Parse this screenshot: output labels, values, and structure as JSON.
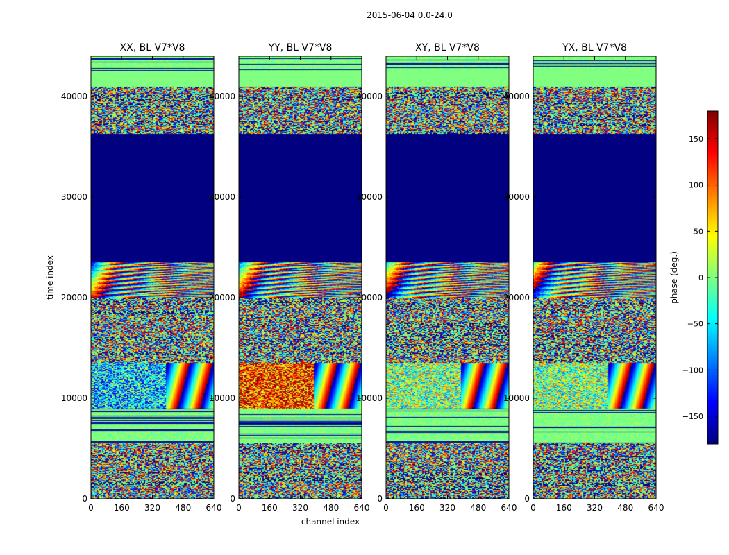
{
  "figure_title": "2015-06-04 0.0-24.0",
  "chart_data": {
    "type": "heatmap",
    "panels": [
      {
        "title": "XX, BL V7*V8",
        "polarization": "XX",
        "baseline": "V7*V8"
      },
      {
        "title": "YY, BL V7*V8",
        "polarization": "YY",
        "baseline": "V7*V8"
      },
      {
        "title": "XY, BL V7*V8",
        "polarization": "XY",
        "baseline": "V7*V8"
      },
      {
        "title": "YX, BL V7*V8",
        "polarization": "YX",
        "baseline": "V7*V8"
      }
    ],
    "xlabel": "channel index",
    "ylabel": "time index",
    "xlim": [
      0,
      640
    ],
    "ylim": [
      0,
      44000
    ],
    "xticks": [
      0,
      160,
      320,
      480,
      640
    ],
    "yticks": [
      0,
      10000,
      20000,
      30000,
      40000
    ],
    "colorbar": {
      "label": "phase (deg.)",
      "range": [
        -180,
        180
      ],
      "ticks": [
        150,
        100,
        50,
        0,
        -50,
        -100,
        -150
      ],
      "tick_labels": [
        "150",
        "100",
        "50",
        "0",
        "−50",
        "−100",
        "−150"
      ],
      "colormap": "jet"
    },
    "regions": [
      {
        "t_start": 0,
        "t_end": 5500,
        "pattern": "noisy_striped"
      },
      {
        "t_start": 5500,
        "t_end": 9000,
        "pattern": "near_zero_striped"
      },
      {
        "t_start": 9000,
        "t_end": 13500,
        "pattern": "dense_noise_with_fringes"
      },
      {
        "t_start": 13500,
        "t_end": 20000,
        "pattern": "noisy_striped"
      },
      {
        "t_start": 20000,
        "t_end": 23500,
        "pattern": "phase_fringes"
      },
      {
        "t_start": 23500,
        "t_end": 36300,
        "value_deg": -180,
        "pattern": "constant"
      },
      {
        "t_start": 36300,
        "t_end": 41000,
        "pattern": "noisy_striped"
      },
      {
        "t_start": 41000,
        "t_end": 42500,
        "value_deg": 0,
        "pattern": "constant"
      },
      {
        "t_start": 42500,
        "t_end": 44000,
        "pattern": "near_zero_striped"
      }
    ]
  }
}
